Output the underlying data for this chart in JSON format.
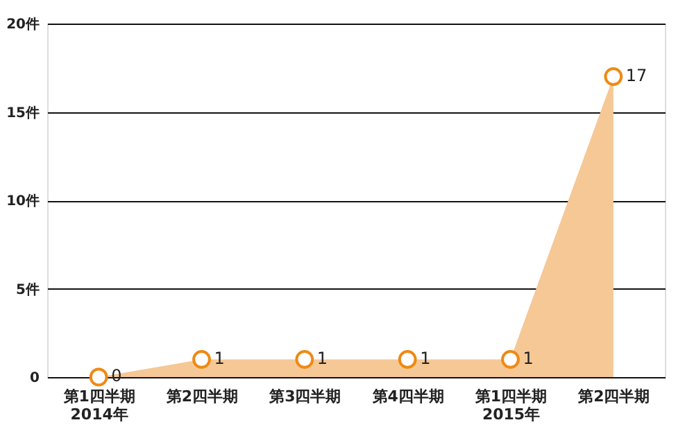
{
  "chart_data": {
    "type": "area",
    "categories": [
      "第1四半期\n2014年",
      "第2四半期",
      "第3四半期",
      "第4四半期",
      "第1四半期\n2015年",
      "第2四半期"
    ],
    "series": [
      {
        "color": "#f5c896",
        "values": [
          0,
          1,
          1,
          1,
          1,
          17
        ]
      }
    ],
    "ylim": [
      0,
      20
    ],
    "yticks": [
      0,
      {
        "value": 5,
        "label": "5件"
      },
      {
        "value": 10,
        "label": "10件"
      },
      {
        "value": 15,
        "label": "15件"
      },
      {
        "value": 20,
        "label": "20件"
      }
    ],
    "grid": "y",
    "marker": "circle",
    "data_labels": true
  }
}
